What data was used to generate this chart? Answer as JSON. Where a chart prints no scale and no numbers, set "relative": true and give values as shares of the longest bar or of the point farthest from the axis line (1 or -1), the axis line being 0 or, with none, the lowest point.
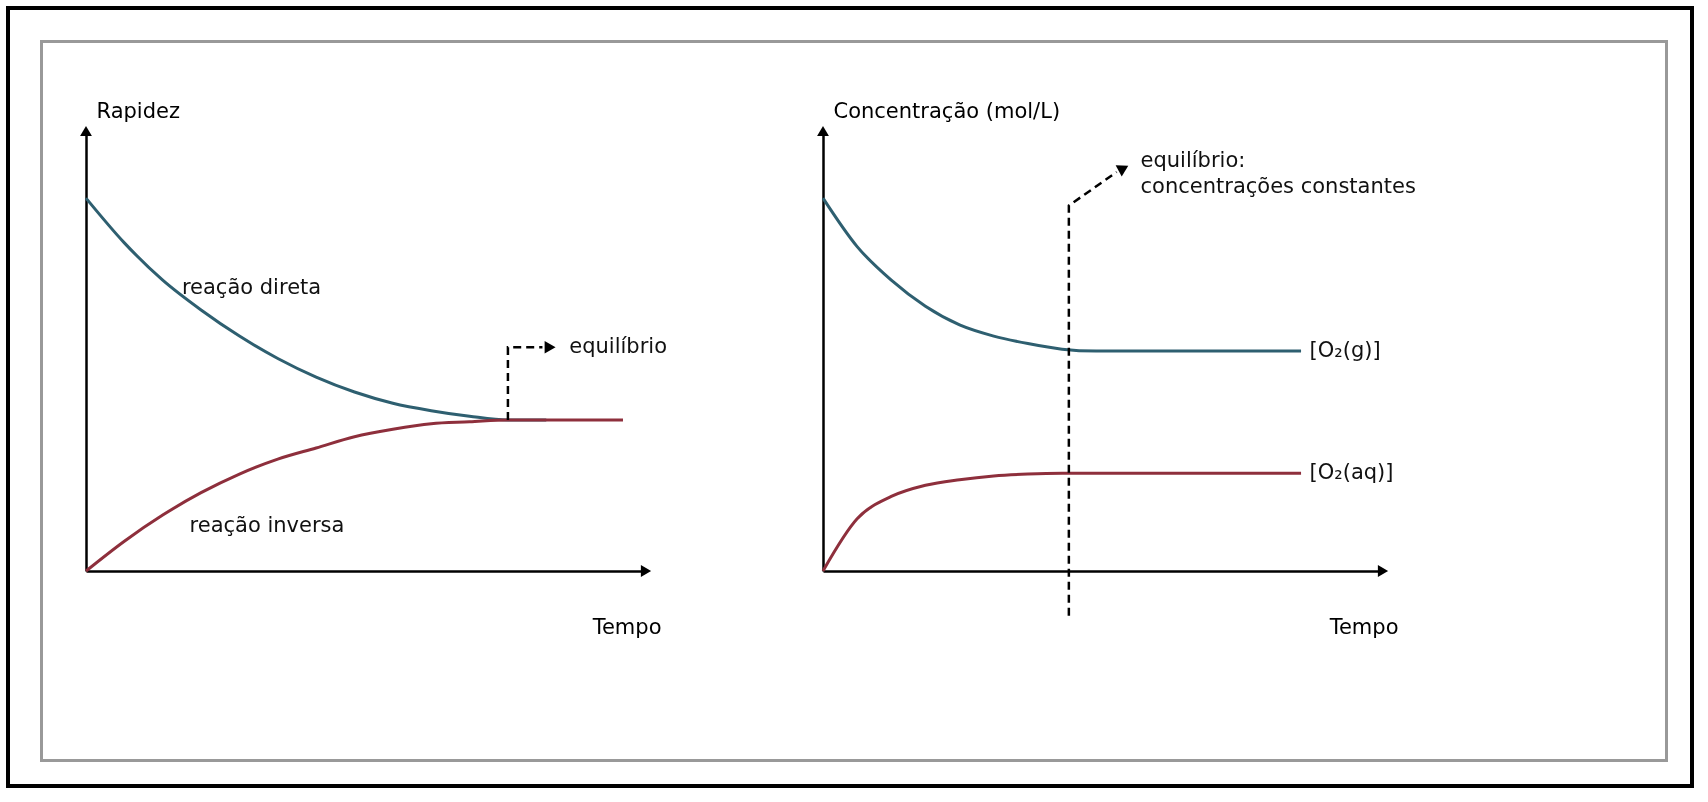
{
  "chart_data": [
    {
      "type": "line",
      "relative": true,
      "ylabel": "Rapidez",
      "xlabel": "Tempo",
      "legend": false,
      "grid": false,
      "annotations": [
        "equilíbrio"
      ],
      "categories": [
        null,
        null,
        null,
        null,
        null,
        null,
        null,
        null,
        null,
        null,
        null,
        null,
        null,
        null,
        null
      ],
      "series": [
        {
          "name": "reação direta",
          "color": "#2e5f70",
          "values": [
            1.0,
            0.88,
            0.78,
            0.7,
            0.63,
            0.57,
            0.52,
            0.48,
            0.45,
            0.43,
            0.415,
            0.405,
            0.405,
            null,
            null
          ]
        },
        {
          "name": "reação inversa",
          "color": "#8e2f3c",
          "values": [
            0,
            0.08,
            0.15,
            0.21,
            0.26,
            0.3,
            0.33,
            0.36,
            0.38,
            0.395,
            0.4,
            0.405,
            0.405,
            0.405,
            0.405
          ]
        }
      ]
    },
    {
      "type": "line",
      "relative": true,
      "ylabel": "Concentração (mol/L)",
      "xlabel": "Tempo",
      "legend": false,
      "grid": false,
      "annotations": [
        "equilíbrio: concentrações constantes"
      ],
      "categories": [
        null,
        null,
        null,
        null,
        null,
        null,
        null,
        null,
        null,
        null,
        null,
        null,
        null,
        null,
        null
      ],
      "series": [
        {
          "name": "[O₂(g)]",
          "color": "#2e5f70",
          "values": [
            1.0,
            0.87,
            0.78,
            0.71,
            0.66,
            0.63,
            0.61,
            0.595,
            0.59,
            0.59,
            0.59,
            0.59,
            0.59,
            0.59,
            0.59
          ]
        },
        {
          "name": "[O₂(aq)]",
          "color": "#8e2f3c",
          "values": [
            0,
            0.14,
            0.2,
            0.23,
            0.245,
            0.255,
            0.26,
            0.262,
            0.262,
            0.262,
            0.262,
            0.262,
            0.262,
            0.262,
            0.262
          ]
        }
      ]
    }
  ]
}
